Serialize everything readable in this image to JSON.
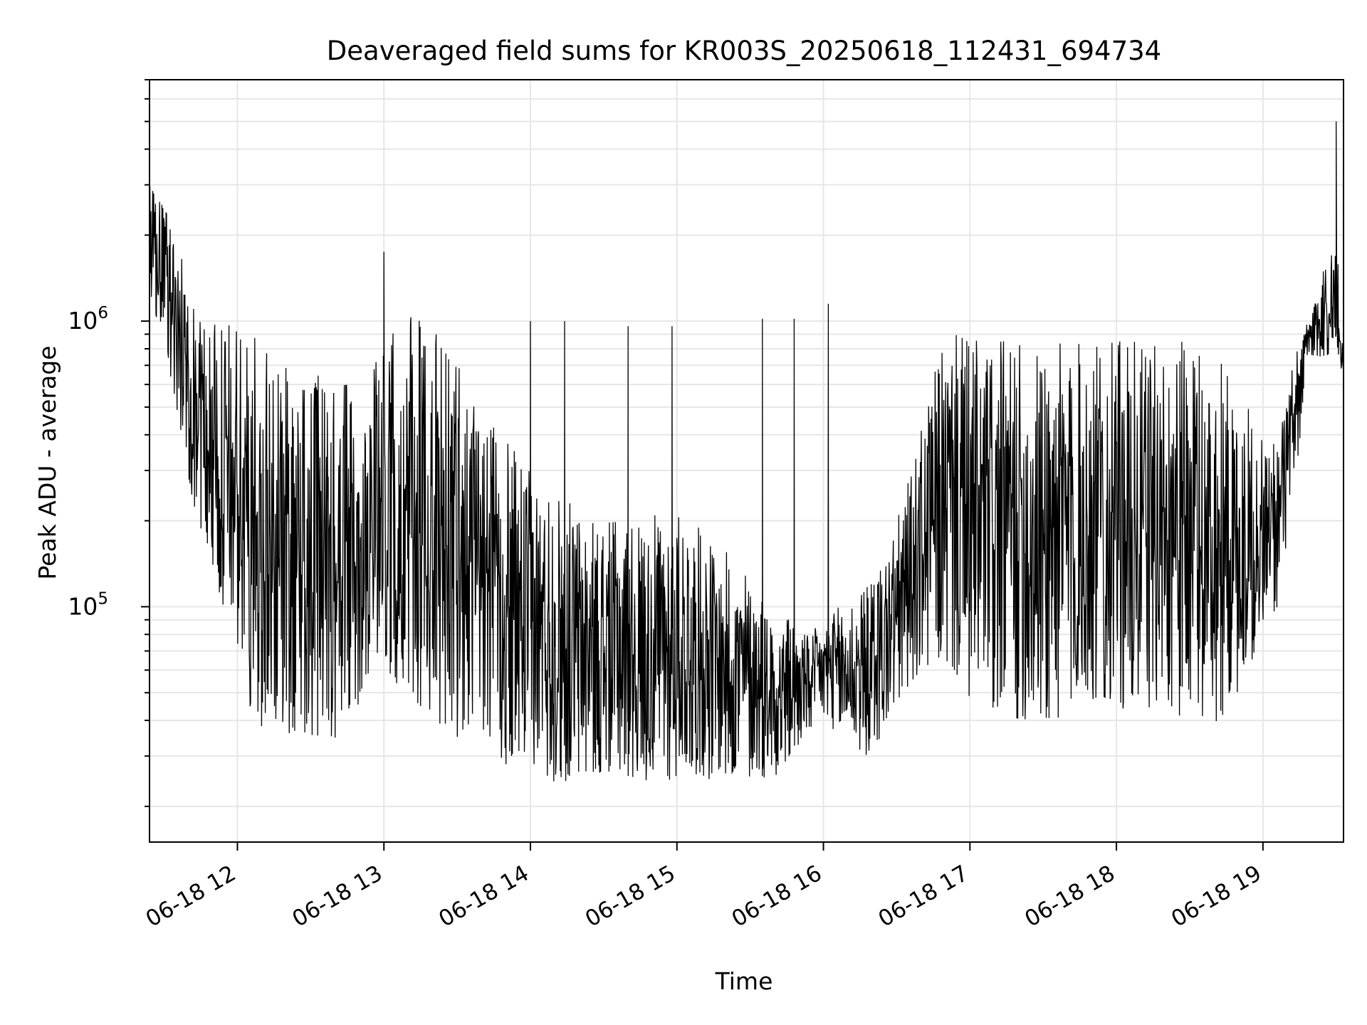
{
  "chart_data": {
    "type": "line",
    "title": "Deaveraged field sums for KR003S_20250618_112431_694734",
    "xlabel": "Time",
    "ylabel": "Peak ADU - average",
    "yscale": "log",
    "grid": true,
    "line_color": "#000000",
    "x_range": [
      "2025-06-18 11:24",
      "2025-06-18 19:33"
    ],
    "ylim": [
      15000,
      7000000
    ],
    "x_ticks": [
      "06-18 12",
      "06-18 13",
      "06-18 14",
      "06-18 15",
      "06-18 16",
      "06-18 17",
      "06-18 18",
      "06-18 19"
    ],
    "y_ticks": [
      {
        "base": "10",
        "exp": "5"
      },
      {
        "base": "10",
        "exp": "6"
      }
    ],
    "series": [
      {
        "x": [
          "2025-06-18 11:24",
          "2025-06-18 11:30",
          "2025-06-18 11:36",
          "2025-06-18 11:42",
          "2025-06-18 11:48",
          "2025-06-18 11:54",
          "2025-06-18 12:00",
          "2025-06-18 12:06",
          "2025-06-18 12:12",
          "2025-06-18 12:18",
          "2025-06-18 12:24",
          "2025-06-18 12:30",
          "2025-06-18 12:36",
          "2025-06-18 12:42",
          "2025-06-18 12:48",
          "2025-06-18 12:54",
          "2025-06-18 13:00",
          "2025-06-18 13:06",
          "2025-06-18 13:12",
          "2025-06-18 13:18",
          "2025-06-18 13:24",
          "2025-06-18 13:30",
          "2025-06-18 13:36",
          "2025-06-18 13:42",
          "2025-06-18 13:48",
          "2025-06-18 13:54",
          "2025-06-18 14:00",
          "2025-06-18 14:06",
          "2025-06-18 14:12",
          "2025-06-18 14:18",
          "2025-06-18 14:24",
          "2025-06-18 14:30",
          "2025-06-18 14:36",
          "2025-06-18 14:42",
          "2025-06-18 14:48",
          "2025-06-18 14:54",
          "2025-06-18 15:00",
          "2025-06-18 15:06",
          "2025-06-18 15:12",
          "2025-06-18 15:18",
          "2025-06-18 15:24",
          "2025-06-18 15:30",
          "2025-06-18 15:36",
          "2025-06-18 15:42",
          "2025-06-18 15:48",
          "2025-06-18 15:54",
          "2025-06-18 16:00",
          "2025-06-18 16:06",
          "2025-06-18 16:12",
          "2025-06-18 16:18",
          "2025-06-18 16:24",
          "2025-06-18 16:30",
          "2025-06-18 16:36",
          "2025-06-18 16:42",
          "2025-06-18 16:48",
          "2025-06-18 16:54",
          "2025-06-18 17:00",
          "2025-06-18 17:06",
          "2025-06-18 17:12",
          "2025-06-18 17:18",
          "2025-06-18 17:24",
          "2025-06-18 17:30",
          "2025-06-18 17:36",
          "2025-06-18 17:42",
          "2025-06-18 17:48",
          "2025-06-18 17:54",
          "2025-06-18 18:00",
          "2025-06-18 18:06",
          "2025-06-18 18:12",
          "2025-06-18 18:18",
          "2025-06-18 18:24",
          "2025-06-18 18:30",
          "2025-06-18 18:36",
          "2025-06-18 18:42",
          "2025-06-18 18:48",
          "2025-06-18 18:54",
          "2025-06-18 19:00",
          "2025-06-18 19:06",
          "2025-06-18 19:12",
          "2025-06-18 19:18",
          "2025-06-18 19:24",
          "2025-06-18 19:30",
          "2025-06-18 19:33"
        ],
        "y_min": [
          1000000,
          900000,
          400000,
          230000,
          150000,
          100000,
          70000,
          40000,
          37000,
          36000,
          36000,
          35000,
          34000,
          34000,
          40000,
          60000,
          65000,
          50000,
          45000,
          40000,
          38000,
          35000,
          33000,
          30000,
          28000,
          27000,
          26000,
          25000,
          24000,
          24000,
          25000,
          26000,
          26000,
          25000,
          24000,
          24000,
          25000,
          26000,
          25000,
          24000,
          24000,
          25000,
          25000,
          26000,
          30000,
          36000,
          40000,
          36000,
          32000,
          30000,
          35000,
          45000,
          55000,
          60000,
          60000,
          58000,
          45000,
          42000,
          40000,
          40000,
          38000,
          38000,
          40000,
          42000,
          45000,
          45000,
          42000,
          42000,
          44000,
          45000,
          42000,
          40000,
          38000,
          40000,
          45000,
          60000,
          80000,
          100000,
          200000,
          700000,
          750000,
          750000,
          600000
        ],
        "y_max": [
          3000000,
          2500000,
          2000000,
          1200000,
          1000000,
          950000,
          1000000,
          900000,
          800000,
          700000,
          700000,
          700000,
          650000,
          600000,
          600000,
          700000,
          900000,
          1000000,
          1050000,
          1000000,
          950000,
          800000,
          600000,
          450000,
          400000,
          350000,
          300000,
          280000,
          250000,
          230000,
          200000,
          200000,
          200000,
          200000,
          200000,
          220000,
          220000,
          200000,
          180000,
          160000,
          150000,
          130000,
          110000,
          100000,
          90000,
          80000,
          90000,
          100000,
          110000,
          120000,
          150000,
          200000,
          300000,
          500000,
          800000,
          900000,
          900000,
          850000,
          850000,
          850000,
          850000,
          850000,
          850000,
          850000,
          850000,
          850000,
          850000,
          850000,
          850000,
          850000,
          850000,
          850000,
          800000,
          750000,
          650000,
          500000,
          400000,
          400000,
          700000,
          1000000,
          1500000,
          2000000,
          800000
        ]
      }
    ],
    "spikes": [
      {
        "x": "2025-06-18 13:00",
        "y": 1750000
      },
      {
        "x": "2025-06-18 14:00",
        "y": 1000000
      },
      {
        "x": "2025-06-18 14:14",
        "y": 1000000
      },
      {
        "x": "2025-06-18 14:40",
        "y": 960000
      },
      {
        "x": "2025-06-18 14:58",
        "y": 960000
      },
      {
        "x": "2025-06-18 15:35",
        "y": 1020000
      },
      {
        "x": "2025-06-18 15:48",
        "y": 1020000
      },
      {
        "x": "2025-06-18 16:02",
        "y": 1150000
      },
      {
        "x": "2025-06-18 19:30",
        "y": 5000000
      }
    ]
  }
}
